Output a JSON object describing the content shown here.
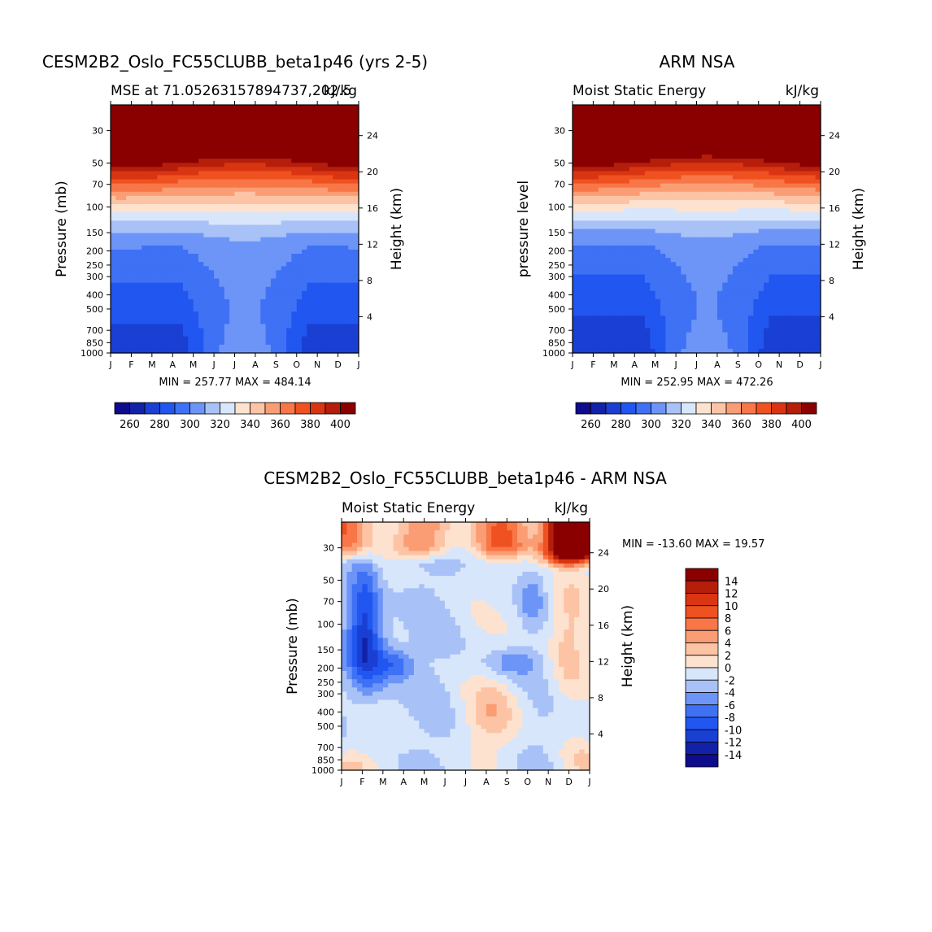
{
  "colorbar_levels": [
    {
      "value": 260,
      "color": "#0e0b8c"
    },
    {
      "value": 270,
      "color": "#1122a8"
    },
    {
      "value": 280,
      "color": "#1a3fd3"
    },
    {
      "value": 290,
      "color": "#2156f0"
    },
    {
      "value": 300,
      "color": "#3f71f5"
    },
    {
      "value": 310,
      "color": "#6d95f7"
    },
    {
      "value": 320,
      "color": "#a8c2f8"
    },
    {
      "value": 330,
      "color": "#d8e6fb"
    },
    {
      "value": 340,
      "color": "#fde2cf"
    },
    {
      "value": 350,
      "color": "#fcc4a5"
    },
    {
      "value": 360,
      "color": "#fb9d74"
    },
    {
      "value": 370,
      "color": "#f87647"
    },
    {
      "value": 380,
      "color": "#ef5121"
    },
    {
      "value": 390,
      "color": "#d93512"
    },
    {
      "value": 400,
      "color": "#b41e0b"
    },
    {
      "value": 410,
      "color": "#8a0000"
    }
  ],
  "diff_levels": [
    {
      "value": -16,
      "color": "#0e0b8c"
    },
    {
      "value": -14,
      "color": "#1122a8"
    },
    {
      "value": -12,
      "color": "#1a3fd3"
    },
    {
      "value": -10,
      "color": "#2156f0"
    },
    {
      "value": -8,
      "color": "#3f71f5"
    },
    {
      "value": -6,
      "color": "#6d95f7"
    },
    {
      "value": -4,
      "color": "#a8c2f8"
    },
    {
      "value": -2,
      "color": "#d8e6fb"
    },
    {
      "value": 0,
      "color": "#fde2cf"
    },
    {
      "value": 2,
      "color": "#fcc4a5"
    },
    {
      "value": 4,
      "color": "#fb9d74"
    },
    {
      "value": 6,
      "color": "#f87647"
    },
    {
      "value": 8,
      "color": "#ef5121"
    },
    {
      "value": 10,
      "color": "#d93512"
    },
    {
      "value": 12,
      "color": "#b41e0b"
    },
    {
      "value": 14,
      "color": "#8a0000"
    }
  ],
  "chart_data": [
    {
      "type": "heatmap",
      "title": "CESM2B2_Oslo_FC55CLUBB_beta1p46 (yrs 2-5)",
      "subtitle_left": "MSE at 71.05263157894737,202.5",
      "subtitle_right": "kJ/kg",
      "ylabel": "Pressure (mb)",
      "ylabel_right": "Height (km)",
      "x_ticks": [
        "J",
        "F",
        "M",
        "A",
        "M",
        "J",
        "J",
        "A",
        "S",
        "O",
        "N",
        "D",
        "J"
      ],
      "y_ticks": [
        30,
        50,
        70,
        100,
        150,
        200,
        250,
        300,
        400,
        500,
        700,
        850,
        1000
      ],
      "y_ticks_right": [
        24,
        20,
        16,
        12,
        8,
        4
      ],
      "ylim": [
        1000,
        20
      ],
      "min_max_text": "MIN = 257.77 MAX = 484.14",
      "min": 257.77,
      "max": 484.14,
      "colorbar_labels": [
        260,
        280,
        300,
        320,
        340,
        360,
        380,
        400
      ]
    },
    {
      "type": "heatmap",
      "title": "ARM NSA",
      "subtitle_left": "Moist Static Energy",
      "subtitle_right": "kJ/kg",
      "ylabel": "pressure level",
      "ylabel_right": "Height (km)",
      "x_ticks": [
        "J",
        "F",
        "M",
        "A",
        "M",
        "J",
        "J",
        "A",
        "S",
        "O",
        "N",
        "D",
        "J"
      ],
      "y_ticks": [
        30,
        50,
        70,
        100,
        150,
        200,
        250,
        300,
        400,
        500,
        700,
        850,
        1000
      ],
      "y_ticks_right": [
        24,
        20,
        16,
        12,
        8,
        4
      ],
      "ylim": [
        1000,
        20
      ],
      "min_max_text": "MIN = 252.95 MAX = 472.26",
      "min": 252.95,
      "max": 472.26,
      "colorbar_labels": [
        260,
        280,
        300,
        320,
        340,
        360,
        380,
        400
      ]
    },
    {
      "type": "heatmap",
      "title": "CESM2B2_Oslo_FC55CLUBB_beta1p46 - ARM NSA",
      "subtitle_left": "Moist Static Energy",
      "subtitle_right": "kJ/kg",
      "ylabel": "Pressure (mb)",
      "ylabel_right": "Height (km)",
      "x_ticks": [
        "J",
        "F",
        "M",
        "A",
        "M",
        "J",
        "J",
        "A",
        "S",
        "O",
        "N",
        "D",
        "J"
      ],
      "y_ticks": [
        30,
        50,
        70,
        100,
        150,
        200,
        250,
        300,
        400,
        500,
        700,
        850,
        1000
      ],
      "y_ticks_right": [
        24,
        20,
        16,
        12,
        8,
        4
      ],
      "ylim": [
        1000,
        20
      ],
      "min_max_text": "MIN = -13.60 MAX =  19.57",
      "min": -13.6,
      "max": 19.57,
      "colorbar_labels": [
        14,
        12,
        10,
        8,
        6,
        4,
        2,
        0,
        -2,
        -4,
        -6,
        -8,
        -10,
        -12,
        -14
      ]
    }
  ]
}
